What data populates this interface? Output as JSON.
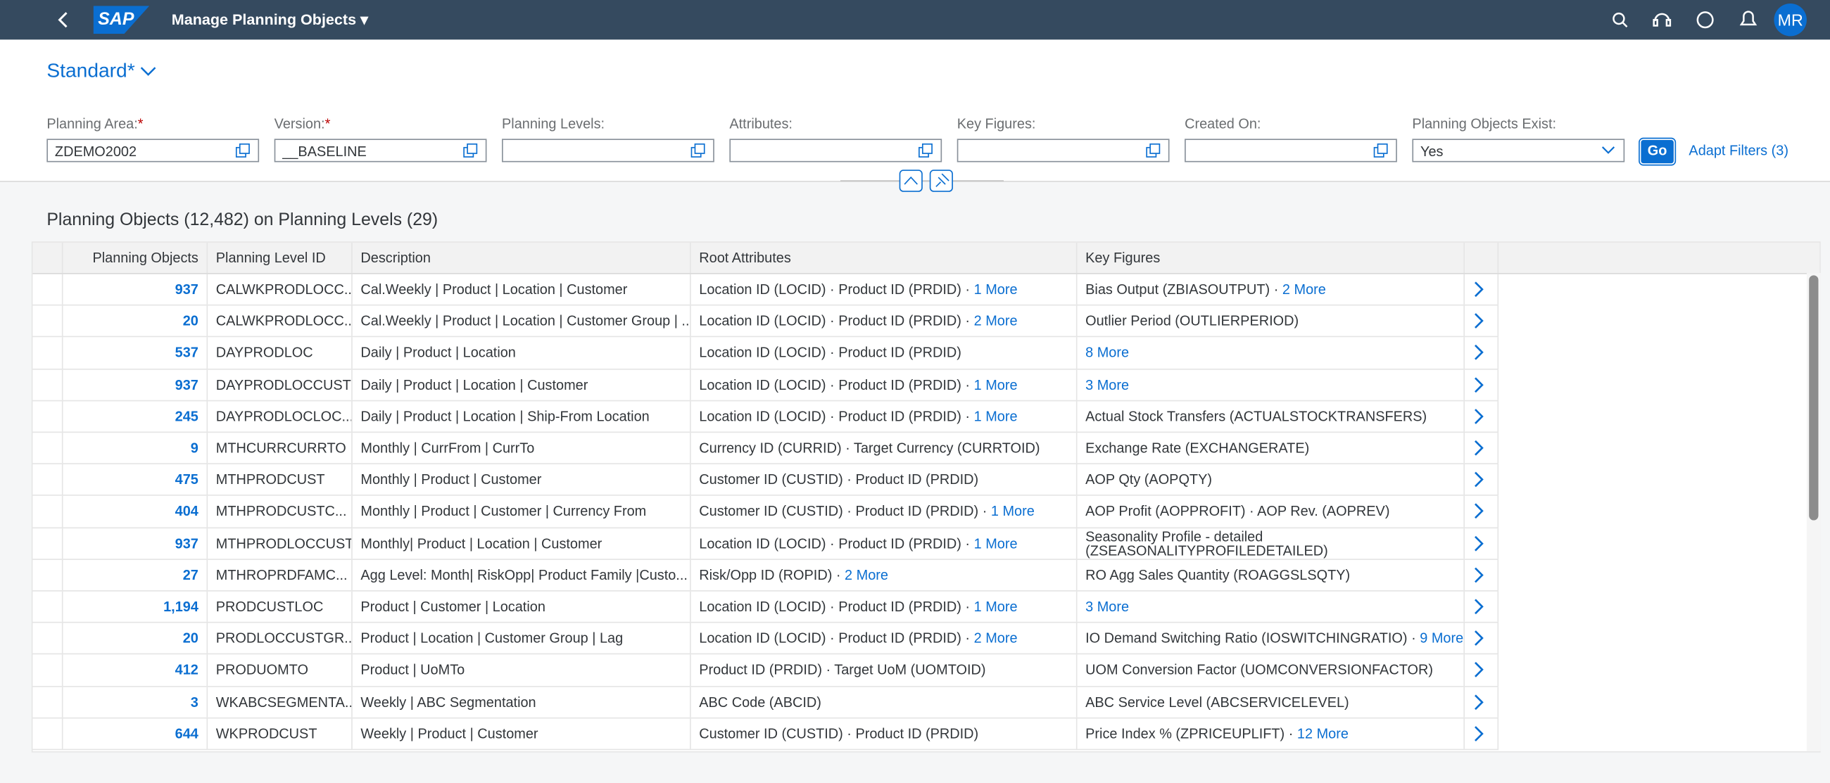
{
  "header": {
    "logo": "SAP",
    "title": "Manage Planning Objects",
    "avatar": "MR"
  },
  "variant": "Standard*",
  "filters": [
    {
      "label": "Planning Area:",
      "required": "*",
      "value": "ZDEMO2002"
    },
    {
      "label": "Version:",
      "required": "*",
      "value": "__BASELINE"
    },
    {
      "label": "Planning Levels:"
    },
    {
      "label": "Attributes:"
    },
    {
      "label": "Key Figures:"
    },
    {
      "label": "Created On:"
    },
    {
      "label": "Planning Objects Exist:",
      "value": "Yes"
    }
  ],
  "go": "Go",
  "adapt_filters": "Adapt Filters (3)",
  "table": {
    "title": "Planning Objects (12,482) on Planning Levels (29)",
    "separator": "·",
    "columns": [
      "Planning Objects",
      "Planning Level ID",
      "Description",
      "Root Attributes",
      "Key Figures"
    ],
    "rows": [
      {
        "count": "937",
        "id": "CALWKPRODLOCC...",
        "desc": "Cal.Weekly | Product | Location | Customer",
        "root": "Location ID (LOCID) · Product ID (PRDID)",
        "root_more": "1 More",
        "kf": "Bias Output (ZBIASOUTPUT)",
        "kf_more": "2 More"
      },
      {
        "count": "20",
        "id": "CALWKPRODLOCC...",
        "desc": "Cal.Weekly | Product | Location | Customer Group | ...",
        "root": "Location ID (LOCID) · Product ID (PRDID)",
        "root_more": "2 More",
        "kf": "Outlier Period (OUTLIERPERIOD)"
      },
      {
        "count": "537",
        "id": "DAYPRODLOC",
        "desc": "Daily | Product | Location",
        "root": "Location ID (LOCID) · Product ID (PRDID)",
        "kf_more": "8 More"
      },
      {
        "count": "937",
        "id": "DAYPRODLOCCUST",
        "desc": "Daily | Product | Location | Customer",
        "root": "Location ID (LOCID) · Product ID (PRDID)",
        "root_more": "1 More",
        "kf_more": "3 More"
      },
      {
        "count": "245",
        "id": "DAYPRODLOCLOC...",
        "desc": "Daily | Product | Location | Ship-From Location",
        "root": "Location ID (LOCID) · Product ID (PRDID)",
        "root_more": "1 More",
        "kf": "Actual Stock Transfers (ACTUALSTOCKTRANSFERS)"
      },
      {
        "count": "9",
        "id": "MTHCURRCURRTO",
        "desc": "Monthly | CurrFrom | CurrTo",
        "root": "Currency ID (CURRID) · Target Currency (CURRTOID)",
        "kf": "Exchange Rate (EXCHANGERATE)"
      },
      {
        "count": "475",
        "id": "MTHPRODCUST",
        "desc": "Monthly | Product | Customer",
        "root": "Customer ID (CUSTID) · Product ID (PRDID)",
        "kf": "AOP Qty (AOPQTY)"
      },
      {
        "count": "404",
        "id": "MTHPRODCUSTC...",
        "desc": "Monthly | Product | Customer | Currency From",
        "root": "Customer ID (CUSTID) · Product ID (PRDID)",
        "root_more": "1 More",
        "kf": "AOP Profit (AOPPROFIT) · AOP Rev. (AOPREV)"
      },
      {
        "count": "937",
        "id": "MTHPRODLOCCUST",
        "desc": "Monthly| Product | Location | Customer",
        "root": "Location ID (LOCID) · Product ID (PRDID)",
        "root_more": "1 More",
        "kf": "Seasonality Profile - detailed (ZSEASONALITYPROFILEDETAILED)"
      },
      {
        "count": "27",
        "id": "MTHROPRDFAMC...",
        "desc": "Agg Level: Month| RiskOpp| Product Family |Custo...",
        "root": "Risk/Opp ID (ROPID)",
        "root_more": "2 More",
        "kf": "RO Agg Sales Quantity (ROAGGSLSQTY)"
      },
      {
        "count": "1,194",
        "id": "PRODCUSTLOC",
        "desc": "Product | Customer | Location",
        "root": "Location ID (LOCID) · Product ID (PRDID)",
        "root_more": "1 More",
        "kf_more": "3 More"
      },
      {
        "count": "20",
        "id": "PRODLOCCUSTGR...",
        "desc": "Product | Location | Customer Group | Lag",
        "root": "Location ID (LOCID) · Product ID (PRDID)",
        "root_more": "2 More",
        "kf": "IO Demand Switching Ratio (IOSWITCHINGRATIO)",
        "kf_more": "9 More"
      },
      {
        "count": "412",
        "id": "PRODUOMTO",
        "desc": "Product | UoMTo",
        "root": "Product ID (PRDID) · Target UoM (UOMTOID)",
        "kf": "UOM Conversion Factor (UOMCONVERSIONFACTOR)"
      },
      {
        "count": "3",
        "id": "WKABCSEGMENTA...",
        "desc": "Weekly | ABC Segmentation",
        "root": "ABC Code (ABCID)",
        "kf": "ABC Service Level (ABCSERVICELEVEL)"
      },
      {
        "count": "644",
        "id": "WKPRODCUST",
        "desc": "Weekly | Product | Customer",
        "root": "Customer ID (CUSTID) · Product ID (PRDID)",
        "kf": "Price Index % (ZPRICEUPLIFT)",
        "kf_more": "12 More"
      }
    ]
  }
}
